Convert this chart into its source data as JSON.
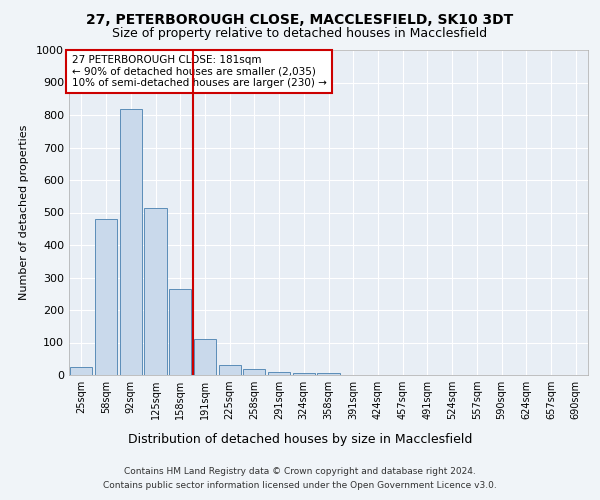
{
  "title1": "27, PETERBOROUGH CLOSE, MACCLESFIELD, SK10 3DT",
  "title2": "Size of property relative to detached houses in Macclesfield",
  "xlabel": "Distribution of detached houses by size in Macclesfield",
  "ylabel": "Number of detached properties",
  "categories": [
    "25sqm",
    "58sqm",
    "92sqm",
    "125sqm",
    "158sqm",
    "191sqm",
    "225sqm",
    "258sqm",
    "291sqm",
    "324sqm",
    "358sqm",
    "391sqm",
    "424sqm",
    "457sqm",
    "491sqm",
    "524sqm",
    "557sqm",
    "590sqm",
    "624sqm",
    "657sqm",
    "690sqm"
  ],
  "values": [
    25,
    480,
    820,
    515,
    265,
    110,
    30,
    17,
    10,
    5,
    5,
    0,
    0,
    0,
    0,
    0,
    0,
    0,
    0,
    0,
    0
  ],
  "bar_color": "#c9d9eb",
  "bar_edge_color": "#5b8db8",
  "vline_x_index": 4.5,
  "vline_color": "#cc0000",
  "ylim": [
    0,
    1000
  ],
  "yticks": [
    0,
    100,
    200,
    300,
    400,
    500,
    600,
    700,
    800,
    900,
    1000
  ],
  "annotation_title": "27 PETERBOROUGH CLOSE: 181sqm",
  "annotation_line1": "← 90% of detached houses are smaller (2,035)",
  "annotation_line2": "10% of semi-detached houses are larger (230) →",
  "annotation_box_color": "#cc0000",
  "footer1": "Contains HM Land Registry data © Crown copyright and database right 2024.",
  "footer2": "Contains public sector information licensed under the Open Government Licence v3.0.",
  "background_color": "#f0f4f8",
  "plot_bg_color": "#e8eef5"
}
